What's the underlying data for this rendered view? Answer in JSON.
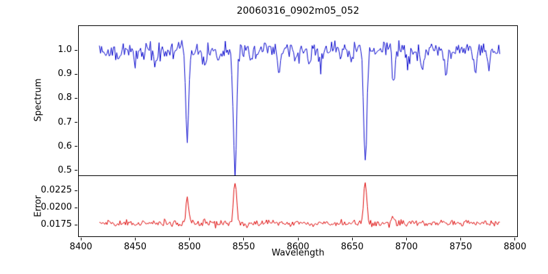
{
  "chart_data": {
    "type": "line",
    "title": "20060316_0902m05_052",
    "xlabel": "Wavelength",
    "xlim": [
      8398,
      8802
    ],
    "x_range": [
      8417,
      8786
    ],
    "x_step": 1.0,
    "x_ticks": [
      8400,
      8450,
      8500,
      8550,
      8600,
      8650,
      8700,
      8750,
      8800
    ],
    "x_tick_labels": [
      "8400",
      "8450",
      "8500",
      "8550",
      "8600",
      "8650",
      "8700",
      "8750",
      "8800"
    ],
    "seed": 42,
    "grid": false,
    "legend": "none",
    "panels": [
      {
        "name": "spectrum",
        "ylabel": "Spectrum",
        "color": "#0000cc",
        "ylim": [
          0.48,
          1.1
        ],
        "y_ticks": [
          0.5,
          0.6,
          0.7,
          0.8,
          0.9,
          1.0
        ],
        "y_tick_labels": [
          "0.5",
          "0.6",
          "0.7",
          "0.8",
          "0.9",
          "1.0"
        ],
        "continuum": 1.0,
        "noise_sigma": 0.019,
        "absorption_lines": [
          {
            "center": 8498,
            "depth": 0.385,
            "width": 1.4
          },
          {
            "center": 8542,
            "depth": 0.515,
            "width": 1.6
          },
          {
            "center": 8662,
            "depth": 0.465,
            "width": 1.5
          },
          {
            "center": 8435,
            "depth": 0.05,
            "width": 1.5
          },
          {
            "center": 8450,
            "depth": 0.04,
            "width": 1.2
          },
          {
            "center": 8468,
            "depth": 0.08,
            "width": 1.5
          },
          {
            "center": 8514,
            "depth": 0.07,
            "width": 1.3
          },
          {
            "center": 8527,
            "depth": 0.05,
            "width": 1.2
          },
          {
            "center": 8557,
            "depth": 0.05,
            "width": 1.3
          },
          {
            "center": 8582,
            "depth": 0.07,
            "width": 1.4
          },
          {
            "center": 8598,
            "depth": 0.05,
            "width": 1.2
          },
          {
            "center": 8611,
            "depth": 0.05,
            "width": 1.2
          },
          {
            "center": 8621,
            "depth": 0.07,
            "width": 1.3
          },
          {
            "center": 8648,
            "depth": 0.05,
            "width": 1.2
          },
          {
            "center": 8688,
            "depth": 0.12,
            "width": 1.5
          },
          {
            "center": 8702,
            "depth": 0.05,
            "width": 1.2
          },
          {
            "center": 8714,
            "depth": 0.08,
            "width": 1.3
          },
          {
            "center": 8736,
            "depth": 0.08,
            "width": 1.4
          },
          {
            "center": 8763,
            "depth": 0.08,
            "width": 1.3
          },
          {
            "center": 8776,
            "depth": 0.05,
            "width": 1.2
          }
        ]
      },
      {
        "name": "error",
        "ylabel": "Error",
        "color": "#dd0000",
        "ylim": [
          0.0158,
          0.0246
        ],
        "y_ticks": [
          0.0175,
          0.02,
          0.0225
        ],
        "y_tick_labels": [
          "0.0175",
          "0.0200",
          "0.0225"
        ],
        "baseline": 0.0177,
        "noise_sigma": 0.00024,
        "spikes": [
          {
            "center": 8498,
            "height": 0.004,
            "width": 1.3
          },
          {
            "center": 8542,
            "height": 0.006,
            "width": 1.4
          },
          {
            "center": 8662,
            "height": 0.0061,
            "width": 1.4
          },
          {
            "center": 8688,
            "height": 0.0009,
            "width": 1.5
          },
          {
            "center": 8514,
            "height": 0.0005,
            "width": 1.3
          }
        ]
      }
    ]
  }
}
